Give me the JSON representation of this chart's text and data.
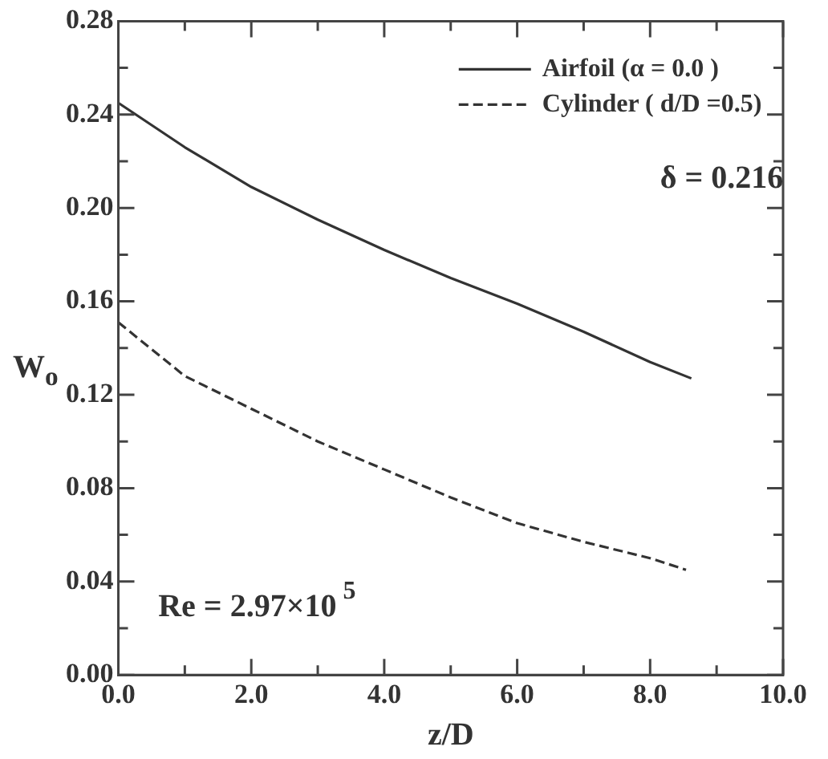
{
  "chart_data": {
    "type": "line",
    "xlabel": "z/D",
    "ylabel": "W$_{o}$",
    "xlim": [
      0,
      10
    ],
    "xticks": [
      {
        "value": 0,
        "label": "0.0"
      },
      {
        "value": 1,
        "label": null
      },
      {
        "value": 2,
        "label": "2.0"
      },
      {
        "value": 3,
        "label": null
      },
      {
        "value": 4,
        "label": "4.0"
      },
      {
        "value": 5,
        "label": null
      },
      {
        "value": 6,
        "label": "6.0"
      },
      {
        "value": 7,
        "label": null
      },
      {
        "value": 8,
        "label": "8.0"
      },
      {
        "value": 9,
        "label": null
      },
      {
        "value": 10,
        "label": "10.0"
      }
    ],
    "ylim": [
      0,
      0.28
    ],
    "yticks": [
      {
        "value": 0,
        "label": "0.00"
      },
      {
        "value": 0.02,
        "label": null
      },
      {
        "value": 0.04,
        "label": "0.04"
      },
      {
        "value": 0.06,
        "label": null
      },
      {
        "value": 0.08,
        "label": "0.08"
      },
      {
        "value": 0.1,
        "label": null
      },
      {
        "value": 0.12,
        "label": "0.12"
      },
      {
        "value": 0.14,
        "label": null
      },
      {
        "value": 0.16,
        "label": "0.16"
      },
      {
        "value": 0.18,
        "label": null
      },
      {
        "value": 0.2,
        "label": "0.20"
      },
      {
        "value": 0.22,
        "label": null
      },
      {
        "value": 0.24,
        "label": "0.24"
      },
      {
        "value": 0.26,
        "label": null
      },
      {
        "value": 0.28,
        "label": "0.28"
      }
    ],
    "series": [
      {
        "name": "Airfoil (α = 0.0 )",
        "color": "#333333",
        "line_style": "solid",
        "x": [
          0,
          1,
          2,
          3,
          4,
          5,
          6,
          7,
          8,
          8.62
        ],
        "values": [
          0.245,
          0.226,
          0.209,
          0.195,
          0.182,
          0.17,
          0.159,
          0.147,
          0.134,
          0.127
        ]
      },
      {
        "name": "Cylinder ( d/D =0.5)",
        "color": "#333333",
        "line_style": "dashed",
        "x": [
          0,
          1,
          2,
          3,
          4,
          5,
          6,
          7,
          8,
          8.54
        ],
        "values": [
          0.151,
          0.128,
          0.114,
          0.1,
          0.088,
          0.076,
          0.065,
          0.057,
          0.05,
          0.045
        ]
      }
    ],
    "annotations": [
      "δ = 0.216",
      "Re = 2.97×10$^{5}$"
    ],
    "legend": "top right",
    "grid": false,
    "marker": "none"
  }
}
